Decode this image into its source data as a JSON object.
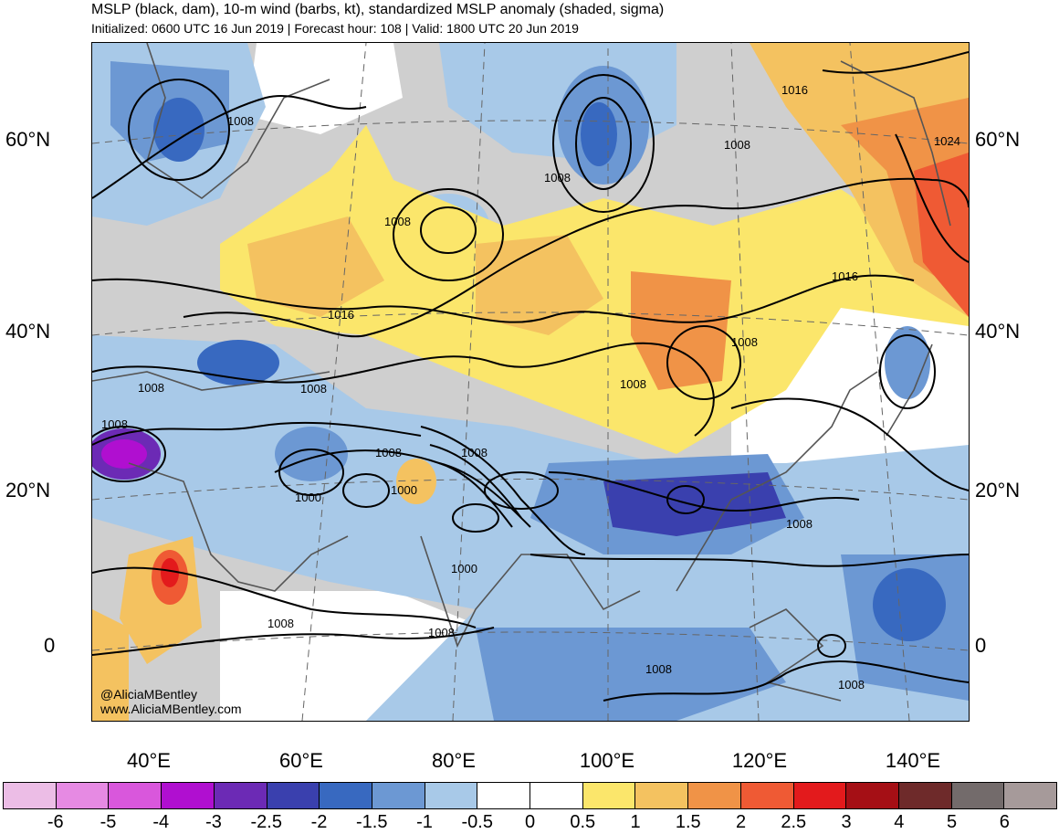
{
  "title": "MSLP (black, dam), 10-m wind (barbs, kt), standardized MSLP anomaly (shaded, sigma)",
  "subtitle": "Initialized: 0600 UTC 16 Jun 2019 | Forecast hour: 108 | Valid: 1800 UTC 20 Jun 2019",
  "credit": {
    "handle": "@AliciaMBentley",
    "site": "www.AliciaMBentley.com"
  },
  "lat_labels": [
    "60°N",
    "40°N",
    "20°N",
    "0"
  ],
  "lon_labels": [
    "40°E",
    "60°E",
    "80°E",
    "100°E",
    "120°E",
    "140°E"
  ],
  "contour_labels": [
    "1008",
    "1008",
    "1008",
    "1016",
    "1008",
    "1008",
    "1024",
    "1016",
    "1016",
    "1008",
    "1008",
    "1008",
    "1008",
    "1008",
    "1008",
    "1000",
    "1000",
    "1000",
    "1008",
    "1008",
    "1008",
    "1008",
    "1008",
    "1008"
  ],
  "colorbar": {
    "ticks": [
      "-6",
      "-5",
      "-4",
      "-3",
      "-2.5",
      "-2",
      "-1.5",
      "-1",
      "-0.5",
      "0",
      "0.5",
      "1",
      "1.5",
      "2",
      "2.5",
      "3",
      "4",
      "5",
      "6"
    ],
    "colors": [
      "#ecbde6",
      "#e68ae3",
      "#d957dc",
      "#b00fd0",
      "#6c2ab5",
      "#3a40ae",
      "#3869c0",
      "#6c98d3",
      "#a8c9e8",
      "#ffffff",
      "#ffffff",
      "#fbe66b",
      "#f4c260",
      "#f09347",
      "#ef5a34",
      "#e31a1c",
      "#a50f15",
      "#6e2a2a",
      "#736b6b",
      "#a69a9a"
    ]
  }
}
